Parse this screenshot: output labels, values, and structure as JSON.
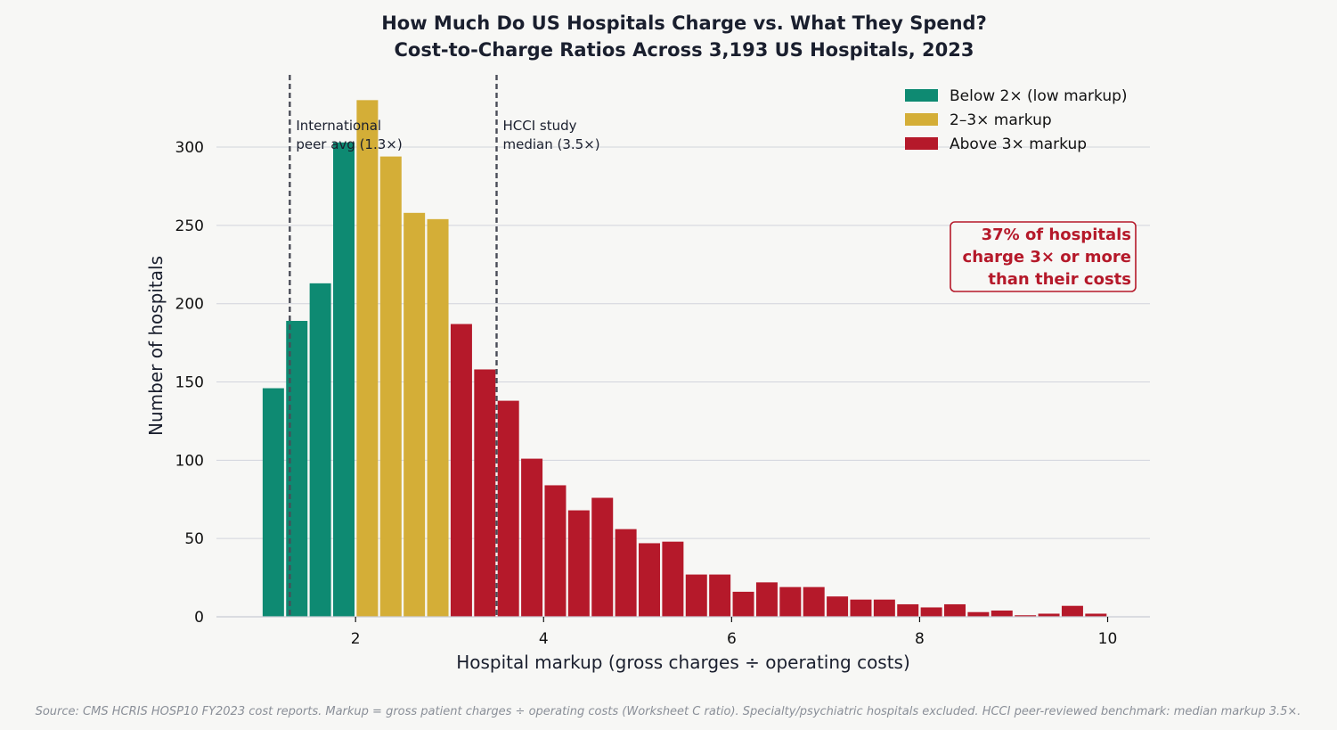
{
  "chart_data": {
    "type": "bar",
    "title": "How Much Do US Hospitals Charge vs. What They Spend?",
    "subtitle": "Cost-to-Charge Ratios Across 3,193 US Hospitals, 2023",
    "xlabel": "Hospital markup (gross charges ÷ operating costs)",
    "ylabel": "Number of hospitals",
    "xlim": [
      0.52,
      10.45
    ],
    "ylim": [
      0,
      345
    ],
    "x_ticks": [
      2,
      4,
      6,
      8,
      10
    ],
    "y_ticks": [
      0,
      50,
      100,
      150,
      200,
      250,
      300
    ],
    "grid": "horizontal",
    "bin_width": 0.25,
    "x": [
      1.125,
      1.375,
      1.625,
      1.875,
      2.125,
      2.375,
      2.625,
      2.875,
      3.125,
      3.375,
      3.625,
      3.875,
      4.125,
      4.375,
      4.625,
      4.875,
      5.125,
      5.375,
      5.625,
      5.875,
      6.125,
      6.375,
      6.625,
      6.875,
      7.125,
      7.375,
      7.625,
      7.875,
      8.125,
      8.375,
      8.625,
      8.875,
      9.125,
      9.375,
      9.625,
      9.875
    ],
    "values": [
      146,
      189,
      213,
      303,
      330,
      294,
      258,
      254,
      187,
      158,
      138,
      101,
      84,
      68,
      76,
      56,
      47,
      48,
      27,
      27,
      16,
      22,
      19,
      19,
      13,
      11,
      11,
      8,
      6,
      8,
      3,
      4,
      1,
      2,
      7,
      2
    ],
    "series": [
      {
        "name": "Below 2× (low markup)",
        "color": "#0e8a72",
        "range": [
          0,
          2
        ]
      },
      {
        "name": "2–3× markup",
        "color": "#d4ae37",
        "range": [
          2,
          3
        ]
      },
      {
        "name": "Above 3× markup",
        "color": "#b5192a",
        "range": [
          3,
          100
        ]
      }
    ],
    "legend_position": "top-right",
    "reference_lines": [
      {
        "x": 1.3,
        "label_lines": [
          "International",
          "peer avg (1.3×)"
        ]
      },
      {
        "x": 3.5,
        "label_lines": [
          "HCCI study",
          "median (3.5×)"
        ]
      }
    ],
    "callout": {
      "lines": [
        "37% of hospitals",
        "charge 3× or more",
        "than their costs"
      ],
      "color": "#b5192a"
    },
    "source": "Source: CMS HCRIS HOSP10 FY2023 cost reports. Markup = gross patient charges ÷ operating costs (Worksheet C ratio). Specialty/psychiatric hospitals excluded. HCCI peer-reviewed benchmark: median markup 3.5×."
  }
}
